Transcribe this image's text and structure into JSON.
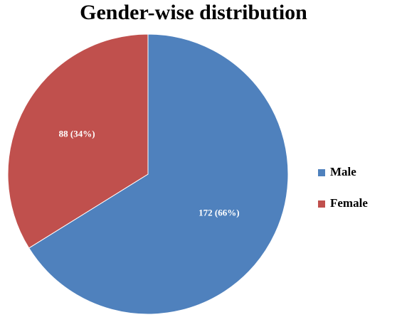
{
  "chart_data": {
    "type": "pie",
    "title": "Gender-wise distribution",
    "categories": [
      "Male",
      "Female"
    ],
    "values": [
      172,
      88
    ],
    "value_labels": [
      "172 (66%)",
      "88 (34%)"
    ],
    "colors": [
      "#4f81bd",
      "#c0504d"
    ],
    "legend": "right"
  }
}
